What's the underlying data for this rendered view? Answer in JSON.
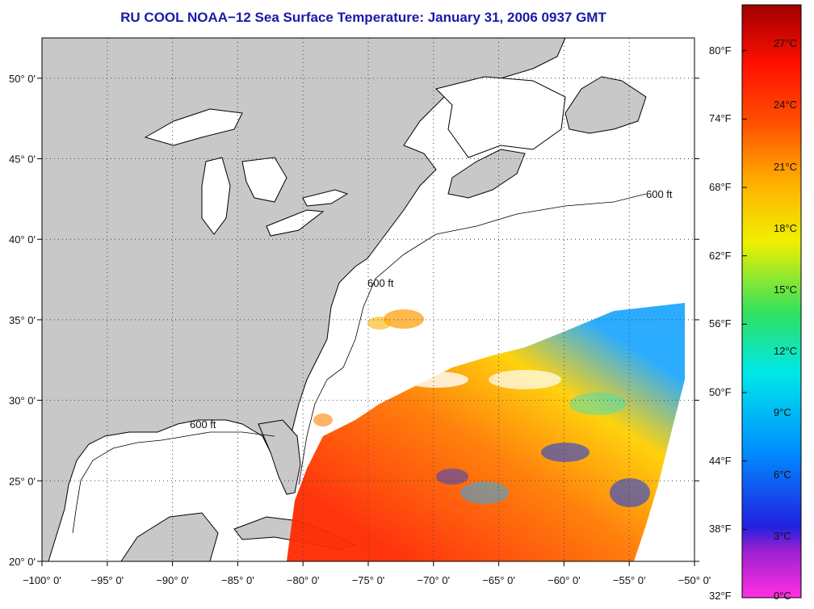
{
  "title": "RU COOL  NOAA−12  Sea Surface Temperature:  January 31, 2006 0937 GMT",
  "contour_label": "600 ft",
  "lon_ticks": [
    "−100° 0'",
    "−95° 0'",
    "−90° 0'",
    "−85° 0'",
    "−80° 0'",
    "−75° 0'",
    "−70° 0'",
    "−65° 0'",
    "−60° 0'",
    "−55° 0'",
    "−50° 0'"
  ],
  "lat_ticks": [
    "50° 0'",
    "45° 0'",
    "40° 0'",
    "35° 0'",
    "30° 0'",
    "25° 0'",
    "20° 0'"
  ],
  "colorbar": {
    "fahrenheit": [
      "80°F",
      "74°F",
      "68°F",
      "62°F",
      "56°F",
      "50°F",
      "44°F",
      "38°F",
      "32°F"
    ],
    "celsius": [
      "27°C",
      "24°C",
      "21°C",
      "18°C",
      "15°C",
      "12°C",
      "9°C",
      "6°C",
      "3°C",
      "0°C"
    ]
  },
  "map_data": {
    "lon_range": [
      -100,
      -50
    ],
    "lat_range": [
      20,
      52.5
    ],
    "colors": {
      "land": "#c8c8c8",
      "ocean": "#ffffff",
      "grid": "#555555",
      "title": "#1a1aa8"
    }
  }
}
